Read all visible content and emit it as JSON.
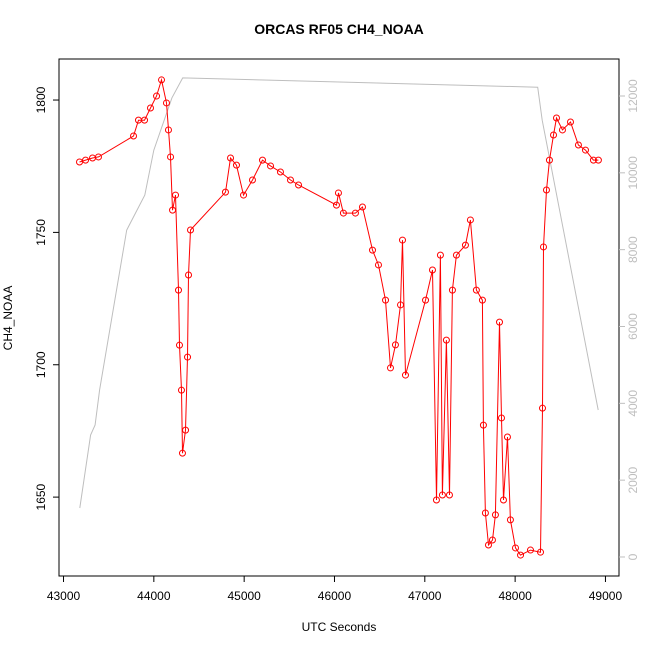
{
  "chart_data": {
    "type": "line",
    "title": "ORCAS RF05 CH4_NOAA",
    "x_label": "UTC Seconds",
    "y_label": "CH4_NOAA",
    "xlim": [
      42950,
      49150
    ],
    "xticks": [
      43000,
      44000,
      45000,
      46000,
      47000,
      48000,
      49000
    ],
    "ylim": [
      1620.2,
      1815.5
    ],
    "yticks": [
      1650,
      1700,
      1750,
      1800
    ],
    "y2lim": [
      -495,
      12963
    ],
    "y2ticks": [
      0,
      2000,
      4000,
      6000,
      8000,
      10000,
      12000
    ],
    "y2_color": "#bebebe",
    "grid": false,
    "series": [
      {
        "color": "#bebebe",
        "axis": "y2",
        "markers": false,
        "x": [
          43180,
          43300,
          43350,
          43400,
          43700,
          43900,
          44000,
          44200,
          44320,
          48250,
          48300,
          48920
        ],
        "values": [
          1275,
          3175,
          3435,
          4350,
          8510,
          9420,
          10590,
          11950,
          12470,
          12230,
          11370,
          3825
        ]
      },
      {
        "color": "#ff0000",
        "markers": true,
        "x": [
          43177,
          43244,
          43321,
          43387,
          43775,
          43830,
          43897,
          43963,
          44030,
          44085,
          44140,
          44162,
          44185,
          44207,
          44240,
          44273,
          44284,
          44306,
          44317,
          44351,
          44373,
          44384,
          44406,
          44793,
          44849,
          44915,
          44993,
          45092,
          45203,
          45292,
          45402,
          45513,
          45602,
          46022,
          46044,
          46099,
          46232,
          46310,
          46421,
          46487,
          46565,
          46620,
          46675,
          46731,
          46753,
          46786,
          47008,
          47085,
          47129,
          47173,
          47195,
          47239,
          47273,
          47306,
          47350,
          47450,
          47505,
          47571,
          47638,
          47649,
          47671,
          47705,
          47749,
          47782,
          47827,
          47849,
          47871,
          47915,
          47948,
          48004,
          48060,
          48170,
          48281,
          48303,
          48314,
          48347,
          48380,
          48425,
          48458,
          48524,
          48613,
          48701,
          48779,
          48867,
          48922
        ],
        "values": [
          1776.6,
          1777.3,
          1778.1,
          1778.5,
          1786.4,
          1792.4,
          1792.4,
          1797,
          1801.5,
          1807.6,
          1798.9,
          1788.7,
          1778.5,
          1758.4,
          1764.1,
          1728.2,
          1707.4,
          1690.4,
          1666.6,
          1675.3,
          1702.9,
          1733.9,
          1750.9,
          1765.2,
          1778.1,
          1775.4,
          1764.1,
          1769.8,
          1777.3,
          1775.1,
          1772.8,
          1769.8,
          1767.9,
          1760.3,
          1764.9,
          1757.3,
          1757.3,
          1759.6,
          1743.3,
          1737.7,
          1724.4,
          1698.8,
          1707.5,
          1722.6,
          1747.1,
          1696.1,
          1724.4,
          1735.8,
          1648.9,
          1741.4,
          1650.8,
          1709.3,
          1650.8,
          1728.2,
          1741.4,
          1745.2,
          1754.7,
          1728.2,
          1724.4,
          1677.2,
          1644,
          1631.9,
          1633.8,
          1643.3,
          1716.1,
          1679.9,
          1648.9,
          1672.7,
          1641.4,
          1630.8,
          1628.1,
          1630,
          1629.2,
          1683.6,
          1744.5,
          1766,
          1777.3,
          1786.8,
          1793.2,
          1788.7,
          1791.7,
          1783,
          1781.1,
          1777.3,
          1777.3
        ]
      }
    ]
  }
}
